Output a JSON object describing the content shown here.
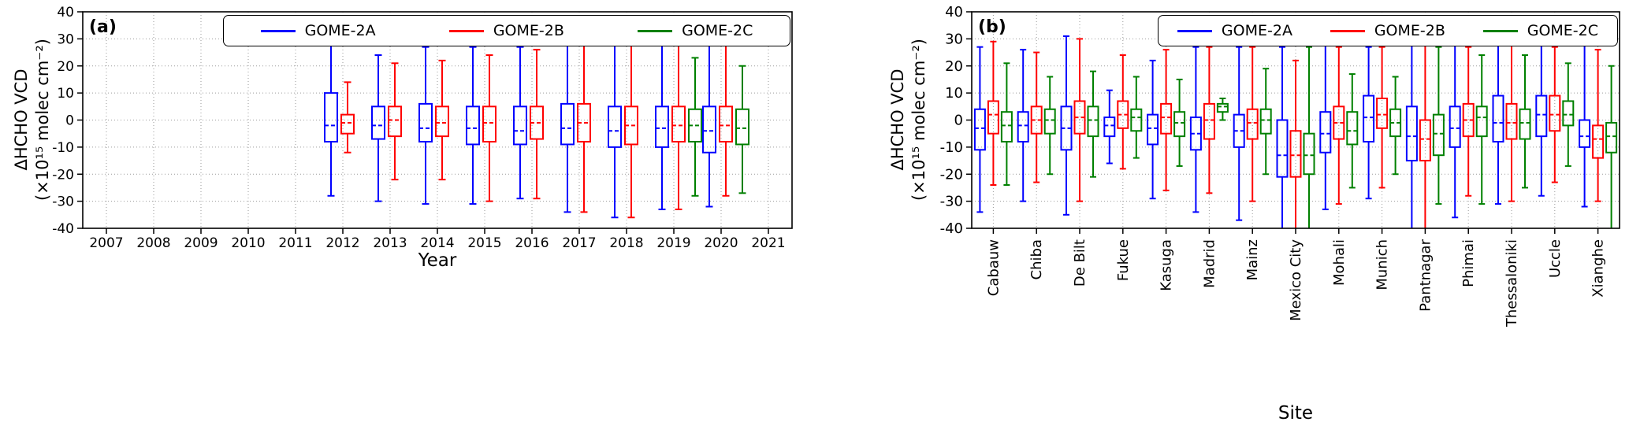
{
  "chart_data": [
    {
      "type": "boxplot",
      "panel_label": "(a)",
      "xlabel": "Year",
      "ylabel_line1": "ΔHCHO VCD",
      "ylabel_line2": "(×10¹⁵ molec cm⁻²)",
      "ylim": [
        -40,
        40
      ],
      "yticks": [
        40,
        30,
        20,
        10,
        0,
        -10,
        -20,
        -30,
        -40
      ],
      "grid": true,
      "legend_position": "top",
      "box_stats_format": [
        "whisker_low",
        "q1",
        "median",
        "q3",
        "whisker_high"
      ],
      "categories": [
        "2007",
        "2008",
        "2009",
        "2010",
        "2011",
        "2012",
        "2013",
        "2014",
        "2015",
        "2016",
        "2017",
        "2018",
        "2019",
        "2020",
        "2021"
      ],
      "series": [
        {
          "name": "GOME-2A",
          "color": "#0000ff",
          "boxes": [
            null,
            null,
            null,
            null,
            null,
            [
              -28,
              -8,
              -2,
              10,
              29
            ],
            [
              -30,
              -7,
              -2,
              5,
              24
            ],
            [
              -31,
              -8,
              -3,
              6,
              27
            ],
            [
              -31,
              -9,
              -3,
              5,
              27
            ],
            [
              -29,
              -9,
              -4,
              5,
              27
            ],
            [
              -34,
              -9,
              -3,
              6,
              30
            ],
            [
              -36,
              -10,
              -4,
              5,
              29
            ],
            [
              -33,
              -10,
              -3,
              5,
              29
            ],
            [
              -32,
              -12,
              -4,
              5,
              28
            ],
            null
          ]
        },
        {
          "name": "GOME-2B",
          "color": "#ff0000",
          "boxes": [
            null,
            null,
            null,
            null,
            null,
            [
              -12,
              -5,
              -1,
              2,
              14
            ],
            [
              -22,
              -6,
              0,
              5,
              21
            ],
            [
              -22,
              -6,
              -1,
              5,
              22
            ],
            [
              -30,
              -8,
              -1,
              5,
              24
            ],
            [
              -29,
              -7,
              -1,
              5,
              26
            ],
            [
              -34,
              -8,
              -1,
              6,
              30
            ],
            [
              -36,
              -9,
              -2,
              5,
              29
            ],
            [
              -33,
              -8,
              -2,
              5,
              29
            ],
            [
              -28,
              -8,
              -2,
              5,
              28
            ],
            null
          ]
        },
        {
          "name": "GOME-2C",
          "color": "#008000",
          "boxes": [
            null,
            null,
            null,
            null,
            null,
            null,
            null,
            null,
            null,
            null,
            null,
            null,
            [
              -28,
              -8,
              -2,
              4,
              23
            ],
            [
              -27,
              -9,
              -3,
              4,
              20
            ],
            null
          ]
        }
      ]
    },
    {
      "type": "boxplot",
      "panel_label": "(b)",
      "xlabel": "Site",
      "ylabel_line1": "ΔHCHO VCD",
      "ylabel_line2": "(×10¹⁵ molec cm⁻²)",
      "ylim": [
        -40,
        40
      ],
      "yticks": [
        40,
        30,
        20,
        10,
        0,
        -10,
        -20,
        -30,
        -40
      ],
      "grid": true,
      "legend_position": "top",
      "box_stats_format": [
        "whisker_low",
        "q1",
        "median",
        "q3",
        "whisker_high"
      ],
      "categories": [
        "Cabauw",
        "Chiba",
        "De Bilt",
        "Fukue",
        "Kasuga",
        "Madrid",
        "Mainz",
        "Mexico City",
        "Mohali",
        "Munich",
        "Pantnagar",
        "Phimai",
        "Thessaloniki",
        "Uccle",
        "Xianghe"
      ],
      "series": [
        {
          "name": "GOME-2A",
          "color": "#0000ff",
          "boxes": [
            [
              -34,
              -11,
              -3,
              4,
              27
            ],
            [
              -30,
              -8,
              -2,
              3,
              26
            ],
            [
              -35,
              -11,
              -3,
              5,
              31
            ],
            [
              -16,
              -6,
              -2,
              1,
              11
            ],
            [
              -29,
              -9,
              -3,
              2,
              22
            ],
            [
              -34,
              -11,
              -5,
              1,
              27
            ],
            [
              -37,
              -10,
              -4,
              2,
              27
            ],
            [
              -44,
              -21,
              -13,
              0,
              27
            ],
            [
              -33,
              -12,
              -5,
              3,
              30
            ],
            [
              -29,
              -8,
              1,
              9,
              27
            ],
            [
              -45,
              -15,
              -6,
              5,
              32
            ],
            [
              -36,
              -10,
              -3,
              5,
              28
            ],
            [
              -31,
              -8,
              -1,
              9,
              28
            ],
            [
              -28,
              -6,
              2,
              9,
              28
            ],
            [
              -32,
              -10,
              -6,
              0,
              28
            ]
          ]
        },
        {
          "name": "GOME-2B",
          "color": "#ff0000",
          "boxes": [
            [
              -24,
              -5,
              2,
              7,
              29
            ],
            [
              -23,
              -5,
              0,
              5,
              25
            ],
            [
              -30,
              -5,
              1,
              7,
              30
            ],
            [
              -18,
              -3,
              2,
              7,
              24
            ],
            [
              -26,
              -5,
              1,
              6,
              26
            ],
            [
              -27,
              -7,
              0,
              6,
              27
            ],
            [
              -30,
              -7,
              -1,
              4,
              27
            ],
            [
              -42,
              -21,
              -13,
              -4,
              22
            ],
            [
              -31,
              -7,
              -1,
              5,
              27
            ],
            [
              -25,
              -3,
              2,
              8,
              27
            ],
            [
              -44,
              -15,
              -7,
              0,
              31
            ],
            [
              -28,
              -6,
              0,
              6,
              27
            ],
            [
              -30,
              -7,
              -1,
              6,
              28
            ],
            [
              -23,
              -4,
              2,
              9,
              27
            ],
            [
              -30,
              -14,
              -7,
              -2,
              26
            ]
          ]
        },
        {
          "name": "GOME-2C",
          "color": "#008000",
          "boxes": [
            [
              -24,
              -8,
              -2,
              3,
              21
            ],
            [
              -20,
              -5,
              0,
              4,
              16
            ],
            [
              -21,
              -6,
              0,
              5,
              18
            ],
            [
              -14,
              -4,
              1,
              4,
              16
            ],
            [
              -17,
              -6,
              -1,
              3,
              15
            ],
            [
              0,
              3,
              5,
              6,
              8
            ],
            [
              -20,
              -5,
              0,
              4,
              19
            ],
            [
              -41,
              -20,
              -13,
              -5,
              27
            ],
            [
              -25,
              -9,
              -4,
              3,
              17
            ],
            [
              -20,
              -6,
              -1,
              4,
              16
            ],
            [
              -31,
              -13,
              -5,
              2,
              27
            ],
            [
              -31,
              -6,
              1,
              5,
              24
            ],
            [
              -25,
              -7,
              -1,
              4,
              24
            ],
            [
              -17,
              -2,
              2,
              7,
              21
            ],
            [
              -42,
              -12,
              -6,
              -1,
              20
            ]
          ]
        }
      ]
    }
  ]
}
